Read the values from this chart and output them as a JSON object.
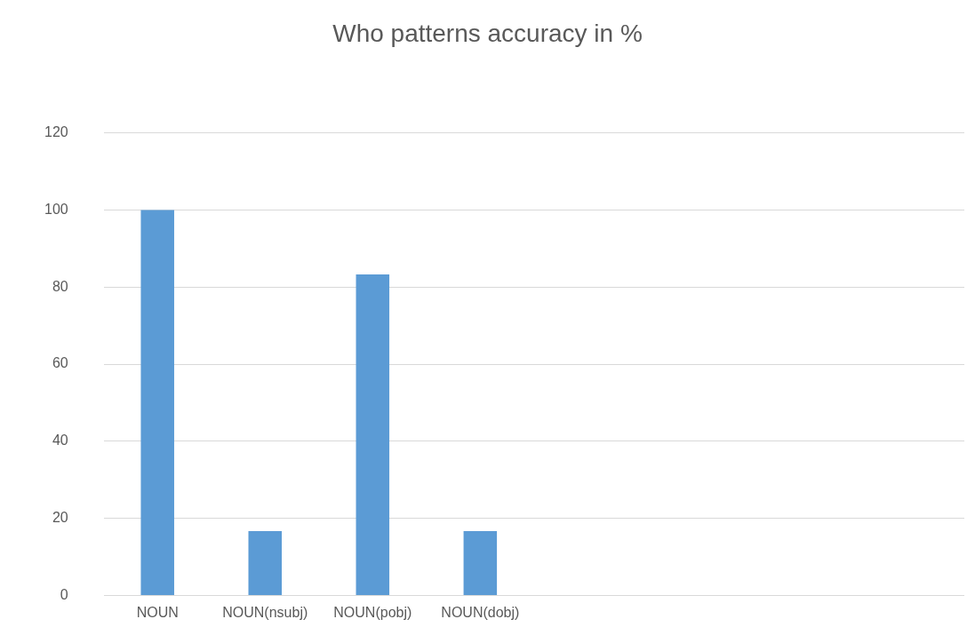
{
  "chart_data": {
    "type": "bar",
    "title": "Who patterns accuracy in %",
    "categories": [
      "NOUN",
      "NOUN(nsubj)",
      "NOUN(pobj)",
      "NOUN(dobj)",
      null,
      null,
      null,
      null
    ],
    "values": [
      100,
      16.7,
      83.3,
      16.7,
      null,
      null,
      null,
      null
    ],
    "color": "#5b9bd5",
    "ylim": [
      0,
      120
    ],
    "yticks": [
      0,
      20,
      40,
      60,
      80,
      100,
      120
    ],
    "grid": "y",
    "legend": false
  }
}
